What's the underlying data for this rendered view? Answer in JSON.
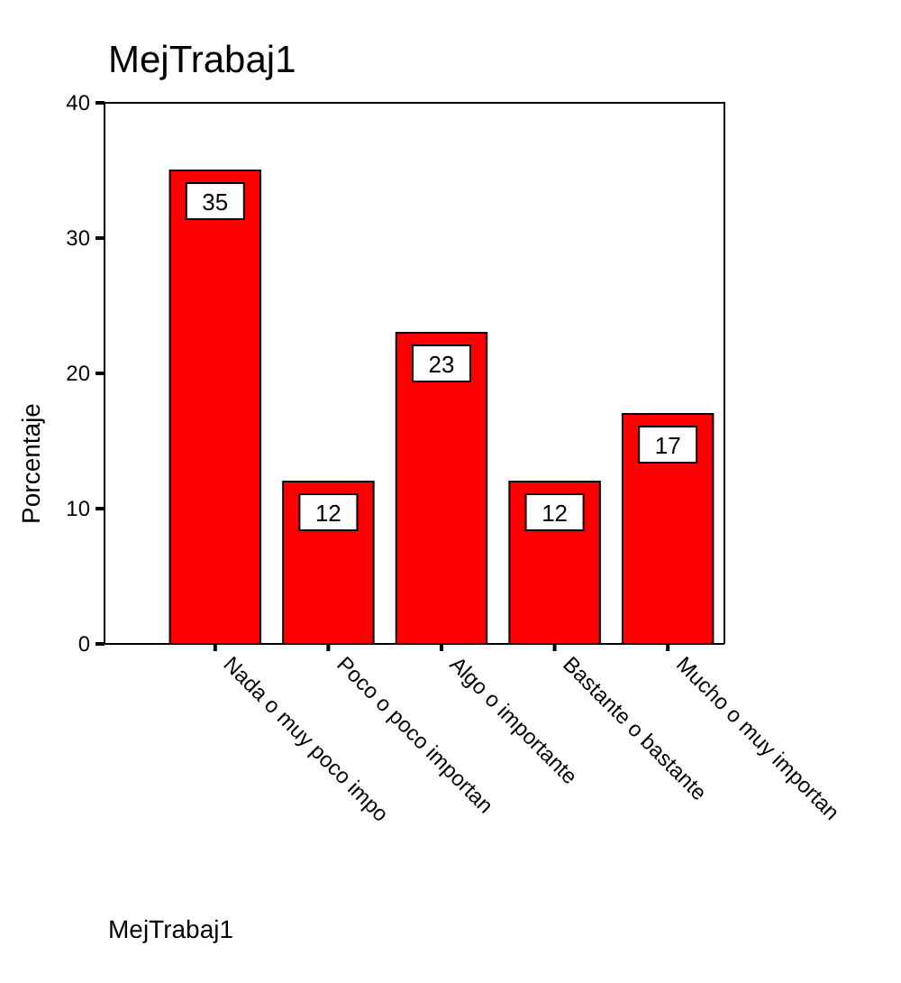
{
  "chart_data": {
    "type": "bar",
    "title": "MejTrabaj1",
    "xlabel": "MejTrabaj1",
    "ylabel": "Porcentaje",
    "categories": [
      "Nada o muy poco impo",
      "Poco o poco importan",
      "Algo o importante",
      "Bastante o bastante",
      "Mucho o muy importan"
    ],
    "values": [
      35,
      12,
      23,
      12,
      17
    ],
    "color": "#ff0000",
    "ylim": [
      0,
      40
    ],
    "yticks": [
      0,
      10,
      20,
      30,
      40
    ],
    "data_labels": true,
    "grid": false
  }
}
